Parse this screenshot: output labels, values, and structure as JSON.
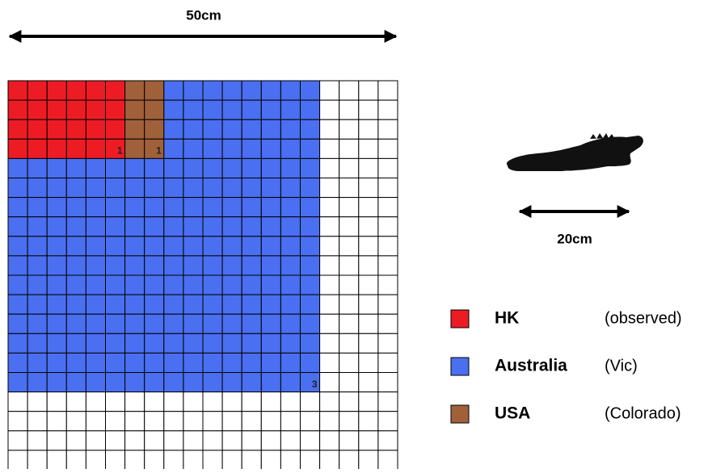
{
  "header": {
    "width_label": "50cm"
  },
  "scale": {
    "label": "20cm"
  },
  "grid_labels": [
    "1",
    "1",
    "3"
  ],
  "legend": [
    {
      "name": "HK",
      "note": "(observed)",
      "color": "#ed1c24"
    },
    {
      "name": "Australia",
      "note": "(Vic)",
      "color": "#4a6ff0"
    },
    {
      "name": "USA",
      "note": "(Colorado)",
      "color": "#a0603a"
    }
  ]
}
